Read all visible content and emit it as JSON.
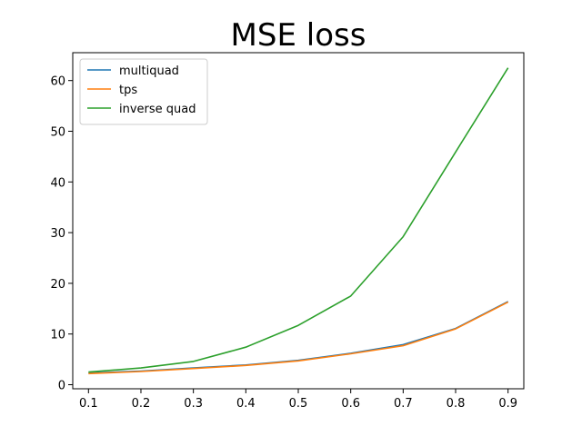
{
  "chart_data": {
    "type": "line",
    "title": "MSE loss",
    "xlabel": "",
    "ylabel": "",
    "x": [
      0.1,
      0.2,
      0.3,
      0.4,
      0.5,
      0.6,
      0.7,
      0.8,
      0.9
    ],
    "xlim": [
      0.07,
      0.93
    ],
    "ylim": [
      -0.8,
      65.5
    ],
    "xticks": [
      "0.1",
      "0.2",
      "0.3",
      "0.4",
      "0.5",
      "0.6",
      "0.7",
      "0.8",
      "0.9"
    ],
    "yticks": [
      "0",
      "10",
      "20",
      "30",
      "40",
      "50",
      "60"
    ],
    "grid": false,
    "legend_position": "top-left",
    "series": [
      {
        "name": "multiquad",
        "color": "#1f77b4",
        "values": [
          2.3,
          2.7,
          3.3,
          3.9,
          4.8,
          6.2,
          7.9,
          11.1,
          16.4
        ]
      },
      {
        "name": "tps",
        "color": "#ff7f0e",
        "values": [
          2.2,
          2.6,
          3.2,
          3.8,
          4.7,
          6.1,
          7.7,
          11.0,
          16.3
        ]
      },
      {
        "name": "inverse quad",
        "color": "#2ca02c",
        "values": [
          2.5,
          3.3,
          4.6,
          7.4,
          11.7,
          17.5,
          29.2,
          45.9,
          62.5
        ]
      }
    ]
  }
}
